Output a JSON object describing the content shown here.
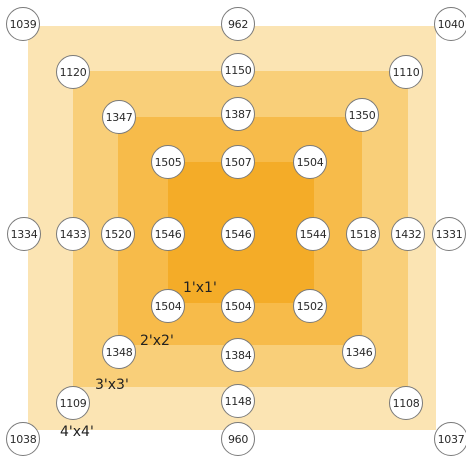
{
  "colors": {
    "zone_4x4": "#fbe4b3",
    "zone_3x3": "#f9cf79",
    "zone_2x2": "#f7bb4a",
    "zone_1x1": "#f4ac28"
  },
  "zone_labels": {
    "z1": "1'x1'",
    "z2": "2'x2'",
    "z3": "3'x3'",
    "z4": "4'x4'"
  },
  "readings": {
    "r0_c0": "1039",
    "r0_c3": "962",
    "r0_c6": "1040",
    "r1_c1": "1120",
    "r1_c3": "1150",
    "r1_c5": "1110",
    "r2_c2": "1347",
    "r2_c3": "1387",
    "r2_c4": "1350",
    "r3_c2b": "1505",
    "r3_c3": "1507",
    "r3_c4b": "1504",
    "r4_c0": "1334",
    "r4_c1": "1433",
    "r4_c2": "1520",
    "r4_c2b": "1546",
    "r4_c3": "1546",
    "r4_c4b": "1544",
    "r4_c4": "1518",
    "r4_c5": "1432",
    "r4_c6": "1331",
    "r5_c2b": "1504",
    "r5_c3": "1504",
    "r5_c4b": "1502",
    "r6_c2": "1348",
    "r6_c3": "1384",
    "r6_c4": "1346",
    "r7_c1": "1109",
    "r7_c3": "1148",
    "r7_c5": "1108",
    "r8_c0": "1038",
    "r8_c3": "960",
    "r8_c6": "1037"
  }
}
